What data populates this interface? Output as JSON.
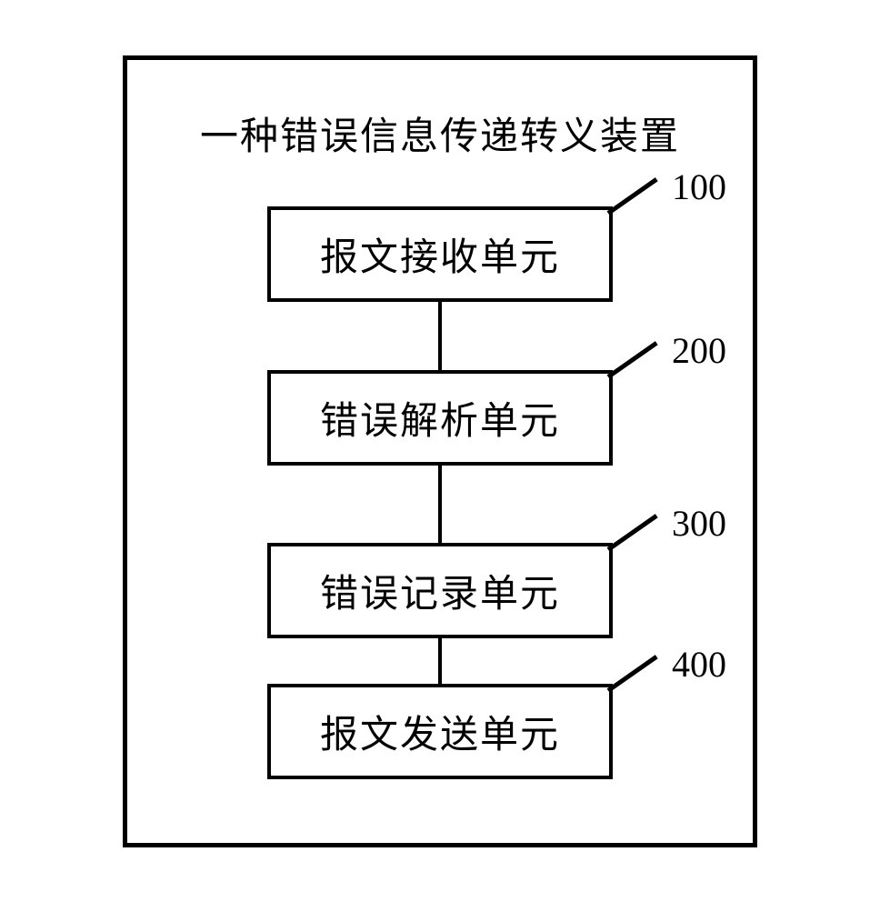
{
  "diagram": {
    "type": "flowchart",
    "title": "一种错误信息传递转义装置",
    "title_fontsize": 42,
    "node_fontsize": 42,
    "label_fontsize": 40,
    "border_color": "#000000",
    "background_color": "#ffffff",
    "outer_border_width": 5,
    "node_border_width": 4,
    "connector_width": 4,
    "nodes": [
      {
        "id": "n1",
        "label": "报文接收单元",
        "ref": "100"
      },
      {
        "id": "n2",
        "label": "错误解析单元",
        "ref": "200"
      },
      {
        "id": "n3",
        "label": "错误记录单元",
        "ref": "300"
      },
      {
        "id": "n4",
        "label": "报文发送单元",
        "ref": "400"
      }
    ],
    "edges": [
      {
        "from": "n1",
        "to": "n2",
        "length": 75
      },
      {
        "from": "n2",
        "to": "n3",
        "length": 85
      },
      {
        "from": "n3",
        "to": "n4",
        "length": 50
      }
    ]
  }
}
